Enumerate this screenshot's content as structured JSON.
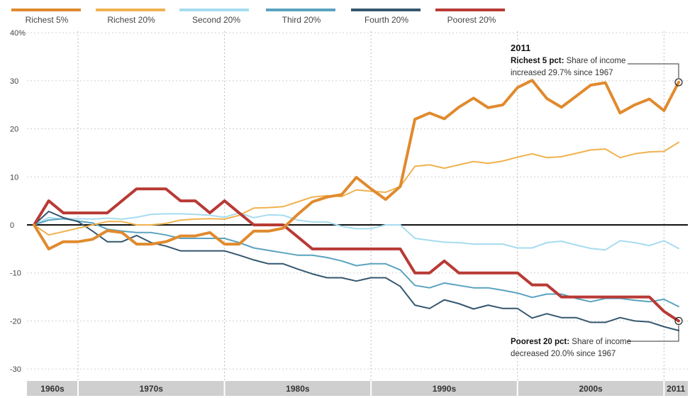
{
  "chart_data": {
    "type": "line",
    "y_unit_label": "40%",
    "ylim": [
      -33,
      40
    ],
    "yticks": [
      40,
      30,
      20,
      10,
      0,
      -10,
      -20,
      -30
    ],
    "ytick_labels": [
      "40%",
      "30",
      "20",
      "10",
      "0",
      "-10",
      "-20",
      "-30"
    ],
    "xlim": [
      1967,
      2011.5
    ],
    "grid": true,
    "legend_position": "top",
    "x": [
      1967,
      1968,
      1969,
      1970,
      1971,
      1972,
      1973,
      1974,
      1975,
      1976,
      1977,
      1978,
      1979,
      1980,
      1981,
      1982,
      1983,
      1984,
      1985,
      1986,
      1987,
      1988,
      1989,
      1990,
      1991,
      1992,
      1993,
      1994,
      1995,
      1996,
      1997,
      1998,
      1999,
      2000,
      2001,
      2002,
      2003,
      2004,
      2005,
      2006,
      2007,
      2008,
      2009,
      2010,
      2011
    ],
    "series": [
      {
        "name": "Richest 5%",
        "color": "#e08a2e",
        "width": 4,
        "values": [
          0,
          -5,
          -3.5,
          -3.5,
          -3,
          -1.2,
          -1.6,
          -4,
          -4,
          -3.5,
          -2.3,
          -2.3,
          -1.6,
          -4,
          -4,
          -1.3,
          -1.3,
          -0.7,
          2.2,
          4.8,
          5.8,
          6.3,
          9.9,
          7.5,
          5.3,
          8,
          22,
          23.3,
          22.1,
          24.5,
          26.4,
          24.4,
          25,
          28.6,
          30.1,
          26.3,
          24.5,
          26.8,
          29.1,
          29.6,
          23.3,
          25,
          26.2,
          23.8,
          29.7
        ]
      },
      {
        "name": "Richest 20%",
        "color": "#f0b24f",
        "width": 2,
        "values": [
          0,
          -2.1,
          -1.4,
          -0.7,
          0,
          0.7,
          0.7,
          0,
          0,
          0.3,
          1,
          1.2,
          1.3,
          1.2,
          2,
          3.5,
          3.6,
          3.8,
          4.8,
          5.8,
          6.1,
          5.9,
          7.3,
          7,
          6.8,
          8,
          12.2,
          12.5,
          11.8,
          12.5,
          13.2,
          12.8,
          13.3,
          14.1,
          14.8,
          14,
          14.2,
          14.9,
          15.6,
          15.8,
          14,
          14.8,
          15.2,
          15.3,
          17.2
        ]
      },
      {
        "name": "Second 20%",
        "color": "#a6dcef",
        "width": 2,
        "values": [
          0,
          1.5,
          1.2,
          1.3,
          1.2,
          1.4,
          1.2,
          1.6,
          2.2,
          2.3,
          2.3,
          2.2,
          2,
          1.6,
          2.5,
          1.5,
          2.1,
          2,
          1,
          0.6,
          0.6,
          -0.3,
          -0.8,
          -0.8,
          0,
          0,
          -2.8,
          -3.2,
          -3.6,
          -3.7,
          -4,
          -4,
          -4,
          -4.8,
          -4.8,
          -3.7,
          -3.4,
          -4.2,
          -4.9,
          -5.2,
          -3.3,
          -3.7,
          -4.3,
          -3.3,
          -4.9
        ]
      },
      {
        "name": "Third 20%",
        "color": "#5aa2bf",
        "width": 2,
        "values": [
          0,
          1,
          1.3,
          0.8,
          0.4,
          -0.9,
          -1.3,
          -1.6,
          -1.6,
          -2.1,
          -2.8,
          -2.8,
          -2.8,
          -2.8,
          -3.7,
          -4.8,
          -5.3,
          -5.8,
          -6.3,
          -6.3,
          -6.8,
          -7.5,
          -8.5,
          -8.1,
          -8.1,
          -9.4,
          -12.6,
          -13.1,
          -12.1,
          -12.6,
          -13.1,
          -13.1,
          -13.6,
          -14.2,
          -15.1,
          -14.4,
          -14.4,
          -15.3,
          -16,
          -15.3,
          -15.3,
          -15.7,
          -16,
          -15.5,
          -17
        ]
      },
      {
        "name": "Fourth 20%",
        "color": "#35576f",
        "width": 2,
        "values": [
          0,
          2.8,
          1.5,
          0.7,
          -1.3,
          -3.5,
          -3.5,
          -2.2,
          -3.7,
          -4.4,
          -5.4,
          -5.4,
          -5.4,
          -5.4,
          -6.3,
          -7.3,
          -8.1,
          -8.1,
          -9.2,
          -10.2,
          -11,
          -11,
          -11.7,
          -11,
          -11,
          -12.8,
          -16.7,
          -17.4,
          -15.6,
          -16.4,
          -17.5,
          -16.7,
          -17.4,
          -17.4,
          -19.4,
          -18.5,
          -19.3,
          -19.3,
          -20.3,
          -20.3,
          -19.3,
          -20,
          -20.2,
          -21.2,
          -22
        ]
      },
      {
        "name": "Poorest 20%",
        "color": "#b83a35",
        "width": 4,
        "values": [
          0,
          5,
          2.5,
          2.5,
          2.5,
          2.5,
          5,
          7.5,
          7.5,
          7.5,
          5,
          5,
          2.5,
          5,
          2.5,
          0,
          0,
          0,
          -2.5,
          -5,
          -5,
          -5,
          -5,
          -5,
          -5,
          -5,
          -10,
          -10,
          -7.5,
          -10,
          -10,
          -10,
          -10,
          -10,
          -12.5,
          -12.5,
          -15,
          -15,
          -15,
          -15,
          -15,
          -15,
          -15,
          -18,
          -20
        ]
      }
    ],
    "decades": [
      {
        "label": "1960s",
        "start": 1963,
        "end": 1970
      },
      {
        "label": "1970s",
        "start": 1970,
        "end": 1980
      },
      {
        "label": "1980s",
        "start": 1980,
        "end": 1990
      },
      {
        "label": "1990s",
        "start": 1990,
        "end": 2000
      },
      {
        "label": "2000s",
        "start": 2000,
        "end": 2010
      },
      {
        "label": "2011",
        "start": 2010,
        "end": 2012
      }
    ],
    "annotations": {
      "year": "2011",
      "top": {
        "bold": "Richest 5 pct:",
        "text1": " Share of income",
        "text2": "increased 29.7% since 1967",
        "x": 2011,
        "y": 29.7
      },
      "bottom": {
        "bold": "Poorest 20 pct:",
        "text1": " Share of income",
        "text2": "decreased 20.0% since 1967",
        "x": 2011,
        "y": -20
      }
    }
  }
}
